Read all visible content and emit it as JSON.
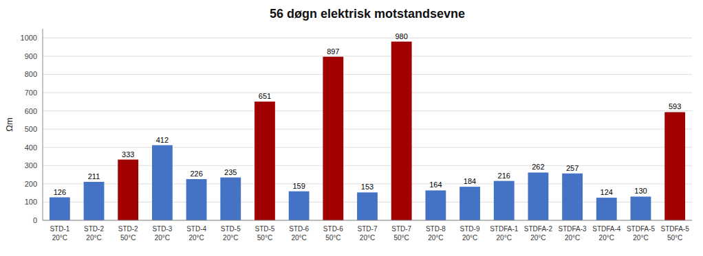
{
  "chart_data": {
    "type": "bar",
    "title": "56 døgn elektrisk motstandsevne",
    "y_label": "Ωm",
    "categories": [
      "STD-1\n20°C",
      "STD-2\n20°C",
      "STD-2\n50°C",
      "STD-3\n20°C",
      "STD-4\n20°C",
      "STD-5\n20°C",
      "STD-5\n50°C",
      "STD-6\n20°C",
      "STD-6\n50°C",
      "STD-7\n20°C",
      "STD-7\n50°C",
      "STD-8\n20°C",
      "STD-9\n20°C",
      "STDFA-1\n20°C",
      "STDFA-2\n20°C",
      "STDFA-3\n20°C",
      "STDFA-4\n20°C",
      "STDFA-5\n20°C",
      "STDFA-5\n50°C"
    ],
    "values": [
      126,
      211,
      333,
      412,
      226,
      235,
      651,
      159,
      897,
      153,
      980,
      164,
      184,
      216,
      262,
      257,
      124,
      130,
      593
    ],
    "colors": [
      "#4472C4",
      "#4472C4",
      "#A00000",
      "#4472C4",
      "#4472C4",
      "#4472C4",
      "#A00000",
      "#4472C4",
      "#A00000",
      "#4472C4",
      "#A00000",
      "#4472C4",
      "#4472C4",
      "#4472C4",
      "#4472C4",
      "#4472C4",
      "#4472C4",
      "#4472C4",
      "#A00000"
    ],
    "ylim": [
      0,
      1050
    ],
    "yticks": [
      0,
      100,
      200,
      300,
      400,
      500,
      600,
      700,
      800,
      900,
      1000
    ],
    "grid": true,
    "data_labels": true
  }
}
